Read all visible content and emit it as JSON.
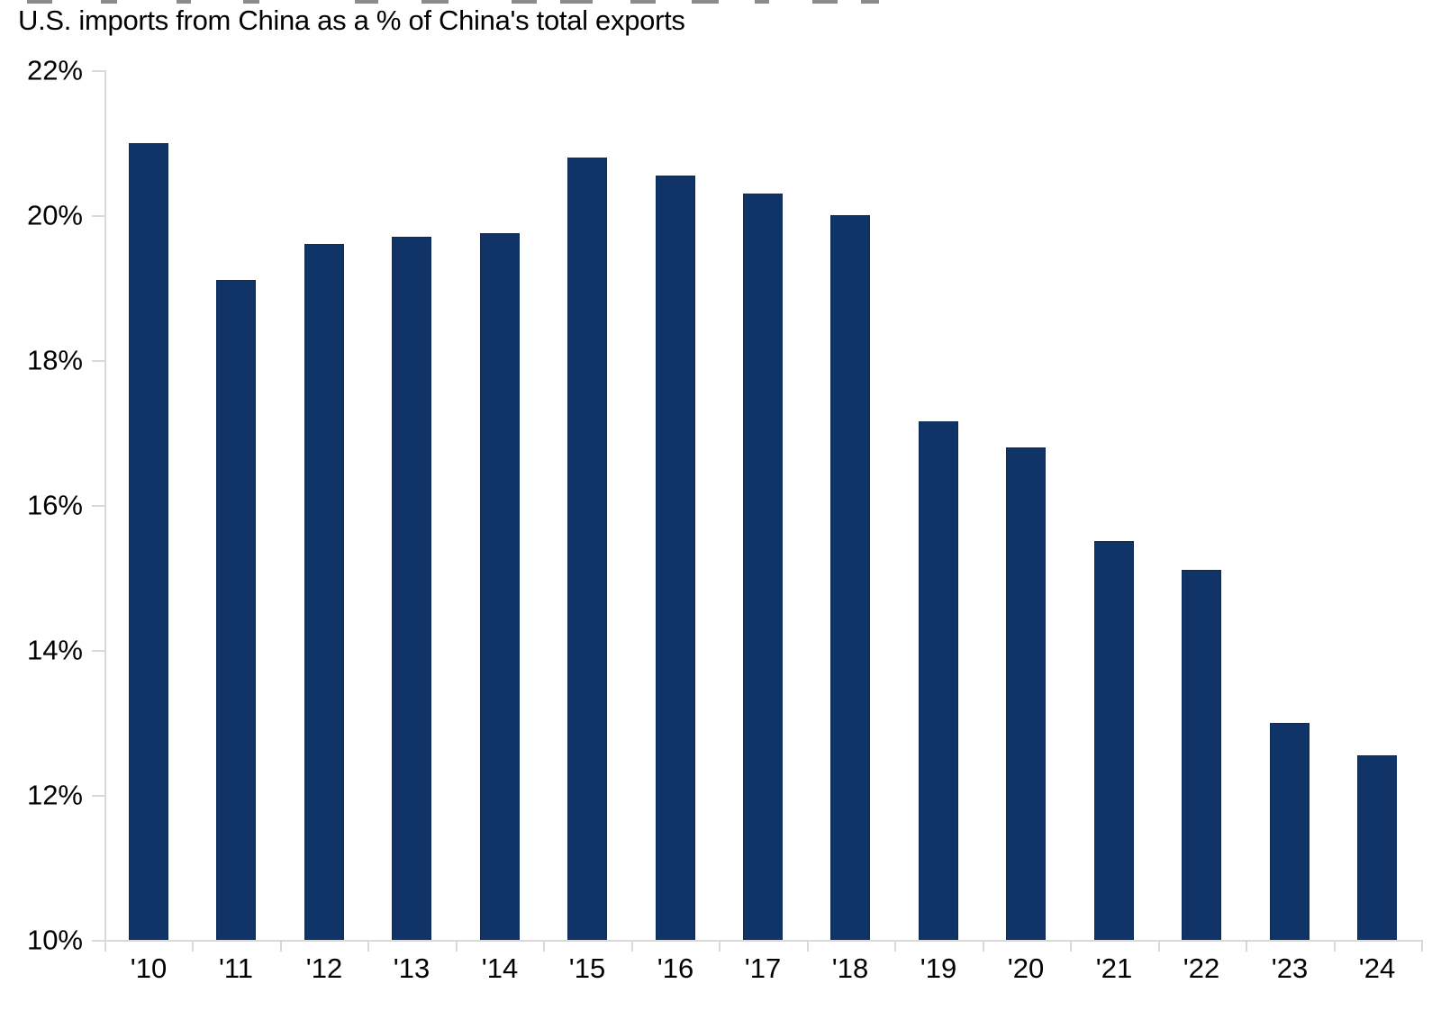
{
  "chart_data": {
    "type": "bar",
    "title": "U.S. imports from China as a % of China's total exports",
    "categories": [
      "'10",
      "'11",
      "'12",
      "'13",
      "'14",
      "'15",
      "'16",
      "'17",
      "'18",
      "'19",
      "'20",
      "'21",
      "'22",
      "'23",
      "'24"
    ],
    "values": [
      21.0,
      19.1,
      19.6,
      19.7,
      19.75,
      20.8,
      20.55,
      20.3,
      20.0,
      17.15,
      16.8,
      15.5,
      15.1,
      13.0,
      12.55
    ],
    "xlabel": "",
    "ylabel": "",
    "ylim": [
      10,
      22
    ],
    "yticks": [
      22,
      20,
      18,
      16,
      14,
      12,
      10
    ],
    "ytick_labels": [
      "22%",
      "20%",
      "18%",
      "16%",
      "14%",
      "12%",
      "10%"
    ],
    "grid": false,
    "legend": "none",
    "colors": {
      "bar": "#103368",
      "bar_border": "#0b2b59",
      "axis": "#d9d9d9",
      "text": "#000000",
      "background": "#ffffff"
    }
  }
}
